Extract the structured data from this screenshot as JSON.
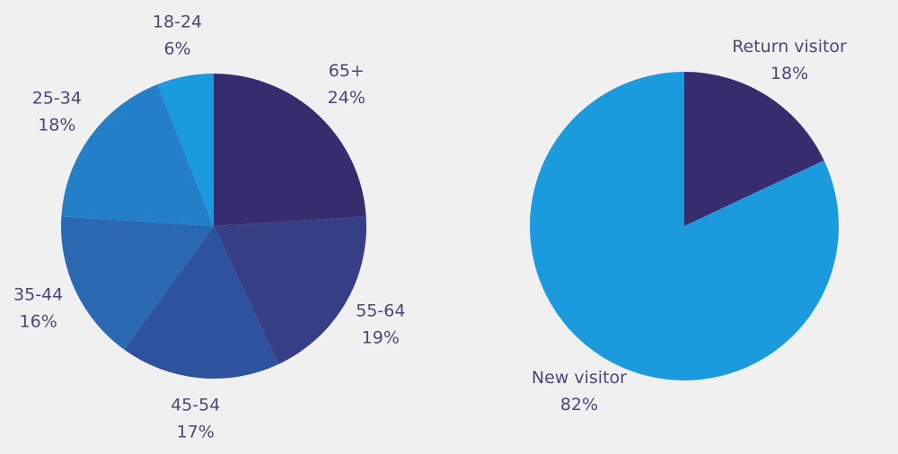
{
  "chart_data": [
    {
      "type": "pie",
      "categories": [
        "65+",
        "55-64",
        "45-54",
        "35-44",
        "25-34",
        "18-24"
      ],
      "values": [
        24,
        19,
        17,
        16,
        18,
        6
      ],
      "value_labels": [
        "24%",
        "19%",
        "17%",
        "16%",
        "18%",
        "6%"
      ],
      "colors": [
        "#352d6e",
        "#363f86",
        "#2e529e",
        "#2a68b2",
        "#2380c8",
        "#1a9be0"
      ]
    },
    {
      "type": "pie",
      "categories": [
        "Return visitor",
        "New visitor"
      ],
      "values": [
        18,
        82
      ],
      "value_labels": [
        "18%",
        "82%"
      ],
      "colors": [
        "#352d6e",
        "#1b9ade"
      ]
    }
  ]
}
